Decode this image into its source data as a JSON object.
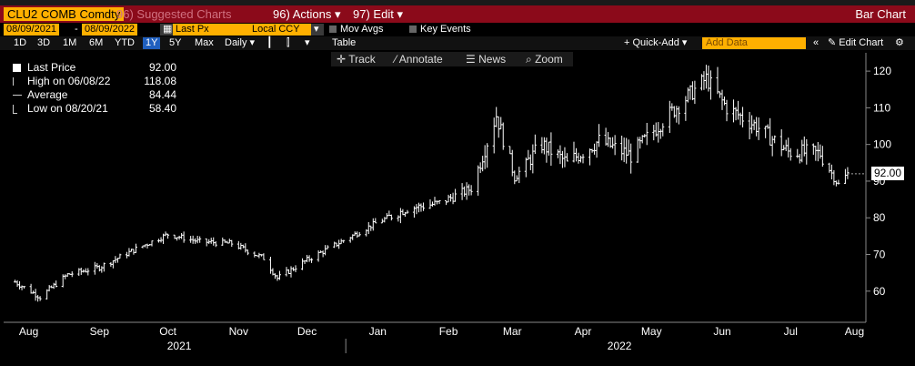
{
  "header": {
    "ticker": "CLU2 COMB Comdty",
    "suggested": "Suggested Charts",
    "suggested_num": "96",
    "actions_num": "96)",
    "actions": "Actions",
    "edit_num": "97)",
    "edit": "Edit",
    "chart_type": "Bar Chart"
  },
  "controls": {
    "start_date": "08/09/2021",
    "end_date": "08/09/2022",
    "price_field": "Last Px",
    "currency": "Local CCY",
    "mov_avgs": "Mov Avgs",
    "key_events": "Key Events"
  },
  "periods": {
    "items": [
      "1D",
      "3D",
      "1M",
      "6M",
      "YTD",
      "1Y",
      "5Y",
      "Max"
    ],
    "selected": "1Y",
    "frequency": "Daily",
    "table": "Table",
    "quick_add": "+ Quick-Add",
    "add_data_placeholder": "Add Data",
    "edit_chart": "Edit Chart"
  },
  "toolbar": {
    "track": "Track",
    "annotate": "Annotate",
    "news": "News",
    "zoom": "Zoom"
  },
  "legend": {
    "last_label": "Last Price",
    "last_value": "92.00",
    "high_label": "High on 06/08/22",
    "high_value": "118.08",
    "avg_label": "Average",
    "avg_value": "84.44",
    "low_label": "Low on 08/20/21",
    "low_value": "58.40"
  },
  "price_tag": "92.00",
  "chart_data": {
    "type": "line",
    "title": "",
    "xlabel": "",
    "ylabel": "",
    "ylim": [
      52,
      124
    ],
    "yticks": [
      60,
      70,
      80,
      90,
      100,
      110,
      120
    ],
    "months": [
      "Aug",
      "Sep",
      "Oct",
      "Nov",
      "Dec",
      "Jan",
      "Feb",
      "Mar",
      "Apr",
      "May",
      "Jun",
      "Jul",
      "Aug"
    ],
    "years": [
      "2021",
      "2022"
    ],
    "x": [
      "2021-08-09",
      "2021-08-20",
      "2021-09-01",
      "2021-09-15",
      "2021-10-01",
      "2021-10-15",
      "2021-10-29",
      "2021-11-12",
      "2021-11-26",
      "2021-12-02",
      "2021-12-15",
      "2021-12-30",
      "2022-01-14",
      "2022-01-28",
      "2022-02-11",
      "2022-02-25",
      "2022-03-08",
      "2022-03-16",
      "2022-03-28",
      "2022-04-08",
      "2022-04-22",
      "2022-05-06",
      "2022-05-20",
      "2022-06-08",
      "2022-06-17",
      "2022-06-30",
      "2022-07-14",
      "2022-07-28",
      "2022-08-05",
      "2022-08-09"
    ],
    "series": [
      {
        "values": [
          62.5,
          58.4,
          64.5,
          66.5,
          71.5,
          75.5,
          73.5,
          73.0,
          69.0,
          63.5,
          68.5,
          73.5,
          78.5,
          82.5,
          84.0,
          88.0,
          108.0,
          91.0,
          100.0,
          95.0,
          101.0,
          97.0,
          106.5,
          118.0,
          110.0,
          105.0,
          98.0,
          97.5,
          89.0,
          92.0
        ]
      }
    ],
    "grid": false,
    "legend_position": "top-left"
  }
}
